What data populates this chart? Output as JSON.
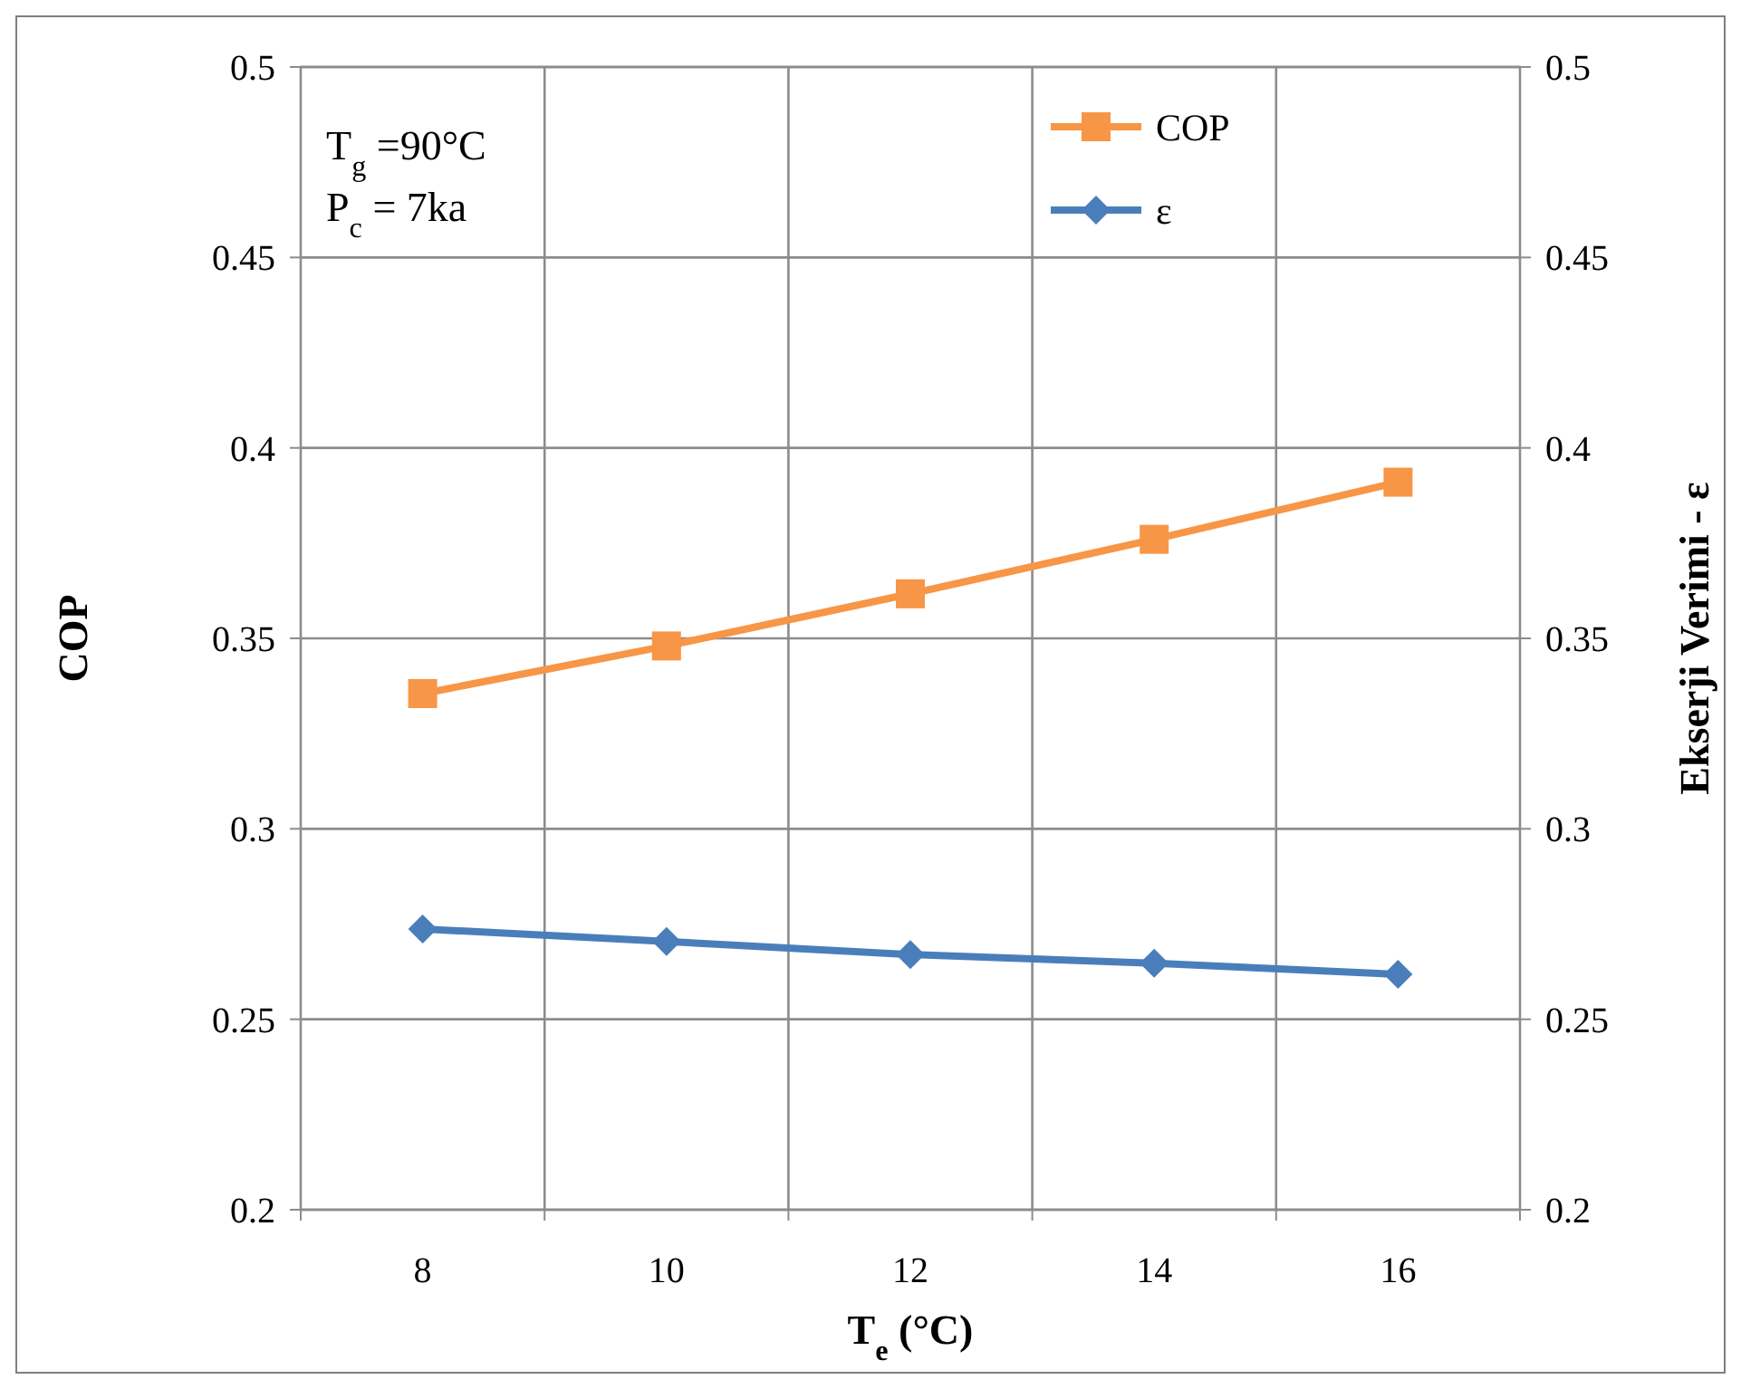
{
  "chart_data": {
    "type": "line",
    "xlabel": "T$_{e}$ (°C)",
    "ylabel": "COP",
    "y2label": "Ekserji Verimi - ε",
    "categories": [
      "8",
      "10",
      "12",
      "14",
      "16"
    ],
    "series": [
      {
        "name": "COP",
        "color": "#f79646",
        "marker": "square",
        "values": [
          0.3355,
          0.348,
          0.3617,
          0.376,
          0.391
        ]
      },
      {
        "name": "ε",
        "color": "#4a7ebb",
        "marker": "diamond",
        "axis": "y2",
        "values": [
          0.2737,
          0.2704,
          0.267,
          0.2647,
          0.2618
        ]
      }
    ],
    "ylim": [
      0.2,
      0.5
    ],
    "yticks": [
      0.2,
      0.25,
      0.3,
      0.35,
      0.4,
      0.45,
      0.5
    ],
    "y2lim": [
      0.2,
      0.5
    ],
    "y2ticks": [
      0.2,
      0.25,
      0.3,
      0.35,
      0.4,
      0.45,
      0.5
    ],
    "grid": true,
    "legend": "top right",
    "line_style": "solid",
    "annotations": [
      "T$_{g}$ =90°C",
      "P$_{c}$  = 7ka"
    ]
  }
}
